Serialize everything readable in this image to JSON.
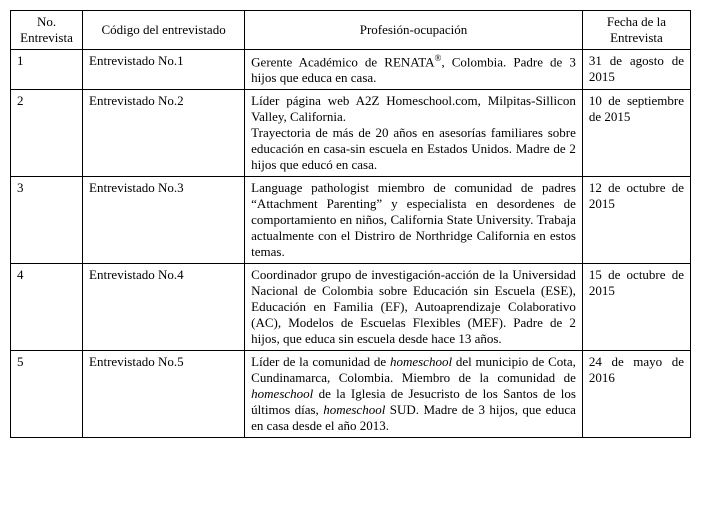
{
  "columns": {
    "no": "No. Entrevista",
    "codigo": "Código del entrevistado",
    "profesion": "Profesión-ocupación",
    "fecha": "Fecha de la Entrevista"
  },
  "rows": [
    {
      "no": "1",
      "codigo": "Entrevistado No.1",
      "profesion_html": "Gerente Académico de RENATA<sup>®</sup>, Colombia. Padre de 3 hijos que educa en casa.",
      "fecha": "31 de agosto de 2015"
    },
    {
      "no": "2",
      "codigo": "Entrevistado No.2",
      "profesion_html": "Líder página web A2Z Homeschool.com, Milpitas-Sillicon Valley, California.<br>Trayectoria de más de 20 años en asesorías familiares sobre educación en casa-sin escuela en Estados Unidos. Madre de 2 hijos que educó en casa.",
      "fecha": "10 de septiembre de 2015"
    },
    {
      "no": "3",
      "codigo": "Entrevistado No.3",
      "profesion_html": "Language pathologist miembro de comunidad de padres &ldquo;Attachment Parenting&rdquo; y especialista en desordenes de comportamiento en niños, California State University. Trabaja actualmente con el Distriro de Northridge California en estos temas.",
      "fecha": "12 de octubre de 2015"
    },
    {
      "no": "4",
      "codigo": "Entrevistado No.4",
      "profesion_html": "Coordinador grupo de investigación-acción de la Universidad Nacional de Colombia sobre Educación sin Escuela (ESE), Educación en Familia (EF), Autoaprendizaje Colaborativo (AC), Modelos de Escuelas Flexibles (MEF). Padre de 2 hijos, que educa sin escuela desde hace 13 años.",
      "fecha": "15 de octubre de 2015"
    },
    {
      "no": "5",
      "codigo": "Entrevistado No.5",
      "profesion_html": "Líder de la comunidad de <em>homeschool</em> del municipio de Cota, Cundinamarca, Colombia. Miembro de la comunidad de <em>homeschool</em> de la Iglesia de Jesucristo de los Santos de los últimos días, <em>homeschool</em> SUD. Madre de 3 hijos, que educa en casa desde el año 2013.",
      "fecha": "24 de mayo de 2016"
    }
  ]
}
